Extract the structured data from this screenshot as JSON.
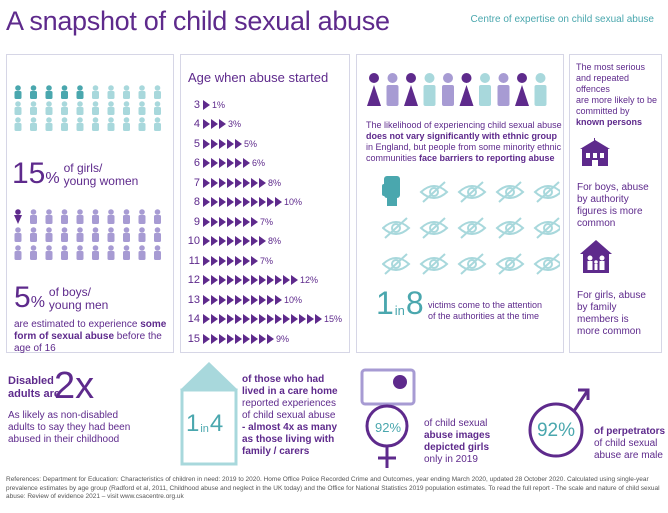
{
  "header": {
    "title": "A snapshot of child sexual abuse",
    "org": "Centre of expertise on child sexual abuse"
  },
  "girls": {
    "pct_num": "15",
    "pct_sym": "%",
    "label1": "of girls/",
    "label2": "young women"
  },
  "boys": {
    "pct_num": "5",
    "pct_sym": "%",
    "label1": "of boys/",
    "label2": "young men"
  },
  "estimate": {
    "pre": "are estimated to experience ",
    "bold": "some form of sexual abuse",
    "post": " before the age of 16"
  },
  "age": {
    "title": "Age when abuse started",
    "rows": [
      {
        "age": "3",
        "pct": 1,
        "label": "1%"
      },
      {
        "age": "4",
        "pct": 3,
        "label": "3%"
      },
      {
        "age": "5",
        "pct": 5,
        "label": "5%"
      },
      {
        "age": "6",
        "pct": 6,
        "label": "6%"
      },
      {
        "age": "7",
        "pct": 8,
        "label": "8%"
      },
      {
        "age": "8",
        "pct": 10,
        "label": "10%"
      },
      {
        "age": "9",
        "pct": 7,
        "label": "7%"
      },
      {
        "age": "10",
        "pct": 8,
        "label": "8%"
      },
      {
        "age": "11",
        "pct": 7,
        "label": "7%"
      },
      {
        "age": "12",
        "pct": 12,
        "label": "12%"
      },
      {
        "age": "13",
        "pct": 10,
        "label": "10%"
      },
      {
        "age": "14",
        "pct": 15,
        "label": "15%"
      },
      {
        "age": "15",
        "pct": 9,
        "label": "9%"
      }
    ]
  },
  "ethnic": {
    "l1": "The likelihood of experiencing child sexual abuse",
    "l2": "does not vary significantly with ethnic group",
    "l3": "in England, but people from some minority ethnic",
    "l4a": "communities ",
    "l4b": "face barriers to reporting abuse"
  },
  "reporting": {
    "one": "1",
    "in": "in",
    "eight": "8",
    "text1": "victims come to the attention",
    "text2": "of the authorities at the time"
  },
  "known": {
    "intro1": "The most serious",
    "intro2": "and repeated offences",
    "intro3": "are more likely to be",
    "intro4": "committed by",
    "intro5": "known persons",
    "boys1": "For boys, abuse",
    "boys2": "by authority",
    "boys3": "figures is more",
    "boys4": "common",
    "girls1": "For girls, abuse",
    "girls2": "by family",
    "girls3": "members is",
    "girls4": "more common"
  },
  "disabled": {
    "l1": "Disabled",
    "l2": "adults are",
    "big": "2x",
    "s1": "As likely as non-disabled",
    "s2": "adults to say they had been",
    "s3": "abused in their childhood"
  },
  "care": {
    "one": "1",
    "in": "in",
    "four": "4",
    "l1": "of those who had",
    "l2": "lived in a care home",
    "l3": "reported experiences",
    "l4": "of child sexual abuse",
    "l5": "- almost 4x as many",
    "l6": "as those living with",
    "l7": "family / carers"
  },
  "images": {
    "pct": "92%",
    "l1": "of child sexual",
    "l2": "abuse images",
    "l3": "depicted girls",
    "l4": "only in 2019"
  },
  "perps": {
    "pct": "92%",
    "l1": "of perpetrators",
    "l2": "of child sexual",
    "l3": "abuse are male"
  },
  "footer": {
    "line1": "References: Department for Education: Characteristics of children in need: 2019 to 2020. Home Office Police Recorded Crime and Outcomes, year ending March 2020, updated 28 October 2020. Calculated using single-year",
    "line2": "prevalence estimates by age group (Radford et al, 2011, Childhood abuse and neglect in the UK today) and the Office for National Statistics 2019 population estimates. To read the full report - The scale and nature of child sexual",
    "line3": "abuse: Review of evidence 2021 – visit www.csacentre.org.uk"
  },
  "colors": {
    "purple": "#5e2a8c",
    "teal": "#4aa7ae",
    "lavender": "#a79bd3",
    "teal_light": "#a8d8dc"
  }
}
